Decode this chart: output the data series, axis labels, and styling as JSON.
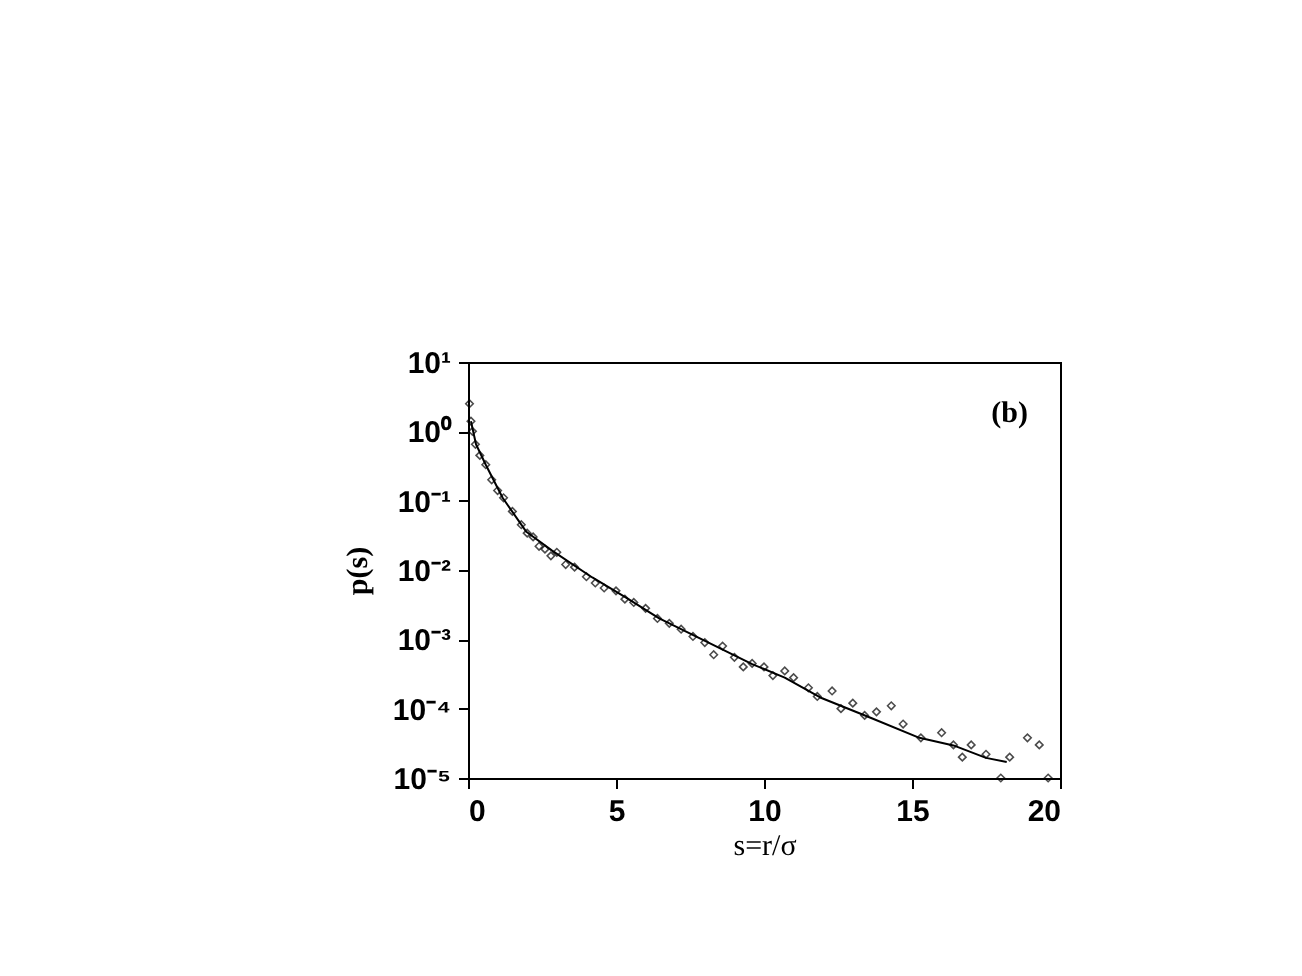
{
  "chart_data": {
    "type": "scatter",
    "xlabel": "s=r/σ",
    "ylabel": "p(s)",
    "annotations": [
      "(b)"
    ],
    "log": "y",
    "grid": false,
    "marker": "diamond",
    "xlim": [
      0,
      20
    ],
    "xticks": [
      0,
      5,
      10,
      15,
      20
    ],
    "ylim": [
      1e-05,
      10
    ],
    "yticks": [
      {
        "value": 1e-05,
        "label": "10⁻⁵"
      },
      {
        "value": 0.0001,
        "label": "10⁻⁴"
      },
      {
        "value": 0.001,
        "label": "10⁻³"
      },
      {
        "value": 0.01,
        "label": "10⁻²"
      },
      {
        "value": 0.1,
        "label": "10⁻¹"
      },
      {
        "value": 1,
        "label": "10⁰"
      },
      {
        "value": 10,
        "label": "10¹"
      }
    ],
    "series": [
      {
        "type": "scatter",
        "color": "#000000",
        "x": [
          0.05,
          0.1,
          0.15,
          0.25,
          0.4,
          0.6,
          0.8,
          1.0,
          1.2,
          1.5,
          1.8,
          2.0,
          2.2,
          2.4,
          2.6,
          2.8,
          3.0,
          3.3,
          3.6,
          4.0,
          4.3,
          4.6,
          5.0,
          5.3,
          5.6,
          6.0,
          6.4,
          6.8,
          7.2,
          7.6,
          8.0,
          8.3,
          8.6,
          9.0,
          9.3,
          9.6,
          10.0,
          10.3,
          10.7,
          11.0,
          11.5,
          11.8,
          12.3,
          12.6,
          13.0,
          13.4,
          13.8,
          14.3,
          14.7,
          15.3,
          16.0,
          16.4,
          16.7,
          17.0,
          17.5,
          18.0,
          18.3,
          18.9,
          19.3,
          19.6
        ],
        "values": [
          2.5,
          1.4,
          1.0,
          0.65,
          0.45,
          0.33,
          0.2,
          0.14,
          0.11,
          0.07,
          0.045,
          0.034,
          0.03,
          0.022,
          0.02,
          0.016,
          0.018,
          0.012,
          0.011,
          0.008,
          0.0065,
          0.0055,
          0.005,
          0.0038,
          0.0034,
          0.0028,
          0.002,
          0.0017,
          0.0014,
          0.0011,
          0.0009,
          0.0006,
          0.0008,
          0.00055,
          0.0004,
          0.00045,
          0.0004,
          0.0003,
          0.00035,
          0.00028,
          0.0002,
          0.00015,
          0.00018,
          0.0001,
          0.00012,
          8e-05,
          9e-05,
          0.00011,
          6e-05,
          3.8e-05,
          4.5e-05,
          3e-05,
          2e-05,
          3e-05,
          2.2e-05,
          1e-05,
          2e-05,
          3.8e-05,
          3e-05,
          1e-05
        ]
      },
      {
        "type": "line",
        "color": "#000000",
        "marker": "none",
        "line_style": "solid",
        "x": [
          0.1,
          0.27,
          0.6,
          1.17,
          1.96,
          2.84,
          4.2,
          5.34,
          6.46,
          7.8,
          9.6,
          10.7,
          11.9,
          13.6,
          15.25,
          16.4,
          17.5,
          18.2
        ],
        "values": [
          1.4,
          0.65,
          0.33,
          0.11,
          0.036,
          0.019,
          0.0078,
          0.004,
          0.002,
          0.00105,
          0.00044,
          0.00028,
          0.000145,
          7.4e-05,
          3.8e-05,
          2.95e-05,
          1.95e-05,
          1.7e-05
        ]
      }
    ]
  }
}
